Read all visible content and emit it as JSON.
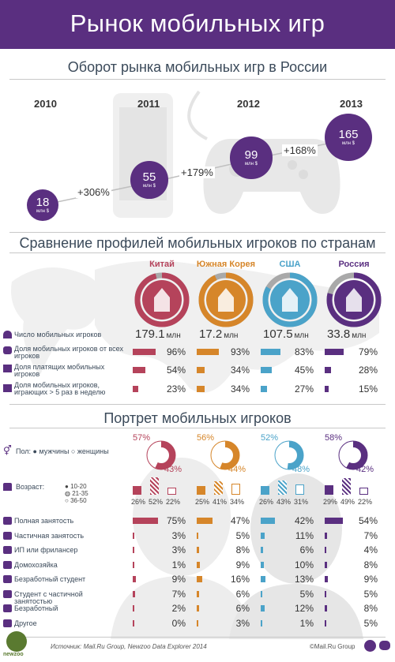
{
  "header": {
    "title": "Рынок мобильных игр"
  },
  "market": {
    "title": "Оборот рынка мобильных игр в России",
    "years": [
      "2010",
      "2011",
      "2012",
      "2013"
    ],
    "unit": "млн $",
    "values": [
      "18",
      "55",
      "99",
      "165"
    ],
    "growth": [
      "+306%",
      "+179%",
      "+168%"
    ]
  },
  "chart_data": {
    "type": "bar",
    "title": "Оборот рынка мобильных игр в России",
    "categories": [
      "2010",
      "2011",
      "2012",
      "2013"
    ],
    "values": [
      18,
      55,
      99,
      165
    ],
    "ylabel": "млн $"
  },
  "compare": {
    "title": "Сравнение профилей мобильных игроков по странам",
    "countries": [
      {
        "name": "Китай",
        "color": "#b5435b",
        "players": "179.1",
        "share_all": "96%",
        "share_pay": "54%",
        "share_5x": "23%",
        "share_all_v": 96,
        "share_pay_v": 54,
        "share_5x_v": 23
      },
      {
        "name": "Южная Корея",
        "color": "#d6862a",
        "players": "17.2",
        "share_all": "93%",
        "share_pay": "34%",
        "share_5x": "34%",
        "share_all_v": 93,
        "share_pay_v": 34,
        "share_5x_v": 34
      },
      {
        "name": "США",
        "color": "#4ba3c9",
        "players": "107.5",
        "share_all": "83%",
        "share_pay": "45%",
        "share_5x": "27%",
        "share_all_v": 83,
        "share_pay_v": 45,
        "share_5x_v": 27
      },
      {
        "name": "Россия",
        "color": "#5a2f80",
        "players": "33.8",
        "share_all": "79%",
        "share_pay": "28%",
        "share_5x": "15%",
        "share_all_v": 79,
        "share_pay_v": 28,
        "share_5x_v": 15
      }
    ],
    "unit": "млн",
    "rows": [
      "Число мобильных игроков",
      "Доля мобильных игроков от всех игроков",
      "Доля платящих мобильных игроков",
      "Доля мобильных игроков, играющих > 5 раз в неделю"
    ]
  },
  "portrait": {
    "title": "Портрет мобильных игроков",
    "gender_label": "Пол:",
    "gender_men": "мужчины",
    "gender_women": "женщины",
    "gender": [
      {
        "men": "57%",
        "women": "43%",
        "men_v": 57
      },
      {
        "men": "56%",
        "women": "44%",
        "men_v": 56
      },
      {
        "men": "52%",
        "women": "48%",
        "men_v": 52
      },
      {
        "men": "58%",
        "women": "42%",
        "men_v": 58
      }
    ],
    "age_label": "Возраст:",
    "age_groups": [
      "10-20",
      "21-35",
      "36-50"
    ],
    "ages": [
      [
        "26%",
        "52%",
        "22%"
      ],
      [
        "25%",
        "41%",
        "34%"
      ],
      [
        "26%",
        "43%",
        "31%"
      ],
      [
        "29%",
        "49%",
        "22%"
      ]
    ],
    "ages_v": [
      [
        26,
        52,
        22
      ],
      [
        25,
        41,
        34
      ],
      [
        26,
        43,
        31
      ],
      [
        29,
        49,
        22
      ]
    ],
    "occ_labels": [
      "Полная занятость",
      "Частичная занятость",
      "ИП или фрилансер",
      "Домохозяйка",
      "Безработный студент",
      "Студент с частичной занятостью",
      "Безработный",
      "Другое"
    ],
    "occ": [
      [
        "75%",
        "47%",
        "42%",
        "54%"
      ],
      [
        "3%",
        "5%",
        "11%",
        "7%"
      ],
      [
        "3%",
        "8%",
        "6%",
        "4%"
      ],
      [
        "1%",
        "9%",
        "10%",
        "8%"
      ],
      [
        "9%",
        "16%",
        "13%",
        "9%"
      ],
      [
        "7%",
        "6%",
        "5%",
        "5%"
      ],
      [
        "2%",
        "6%",
        "12%",
        "8%"
      ],
      [
        "0%",
        "3%",
        "1%",
        "5%"
      ]
    ],
    "occ_v": [
      [
        75,
        47,
        42,
        54
      ],
      [
        3,
        5,
        11,
        7
      ],
      [
        3,
        8,
        6,
        4
      ],
      [
        1,
        9,
        10,
        8
      ],
      [
        9,
        16,
        13,
        9
      ],
      [
        7,
        6,
        5,
        5
      ],
      [
        2,
        6,
        12,
        8
      ],
      [
        0,
        3,
        1,
        5
      ]
    ]
  },
  "footer": {
    "logo": "newzoo",
    "source": "Источник: Mail.Ru Group, Newzoo Data Explorer 2014",
    "brand": "©Mail.Ru Group"
  }
}
